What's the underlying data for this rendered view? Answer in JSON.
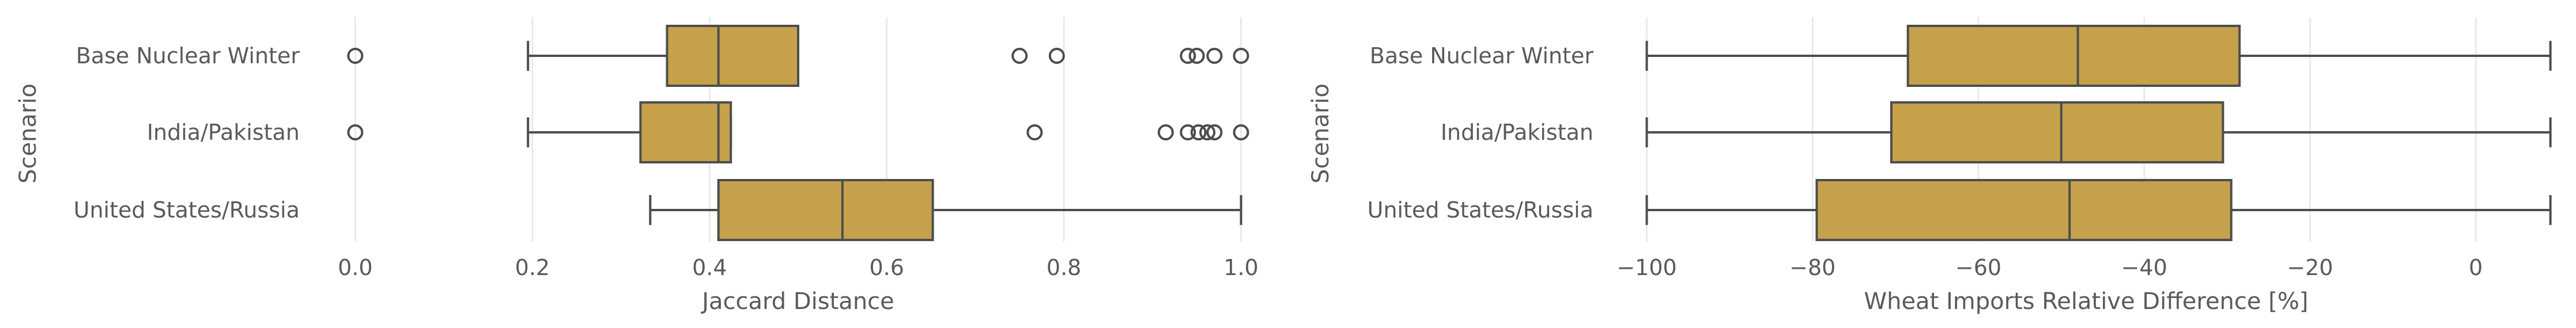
{
  "colors": {
    "box_fill": "#c5a14c",
    "line": "#4d4d4d",
    "grid": "#e6e6e6",
    "text": "#5a5a5a"
  },
  "chart_data": [
    {
      "type": "box",
      "ylabel": "Scenario",
      "xlabel": "Jaccard Distance",
      "categories": [
        "Base Nuclear Winter",
        "India/Pakistan",
        "United States/Russia"
      ],
      "xlim": [
        -0.04,
        1.04
      ],
      "xticks": [
        0.0,
        0.2,
        0.4,
        0.6,
        0.8,
        1.0
      ],
      "xtick_labels": [
        "0.0",
        "0.2",
        "0.4",
        "0.6",
        "0.8",
        "1.0"
      ],
      "grid": "x",
      "boxes": [
        {
          "category": "Base Nuclear Winter",
          "whislo": 0.195,
          "q1": 0.352,
          "med": 0.41,
          "q3": 0.5,
          "whishi": 0.5,
          "fliers": [
            0.0,
            0.75,
            0.792,
            0.94,
            0.95,
            0.97,
            1.0
          ]
        },
        {
          "category": "India/Pakistan",
          "whislo": 0.195,
          "q1": 0.322,
          "med": 0.41,
          "q3": 0.424,
          "whishi": 0.424,
          "fliers": [
            0.0,
            0.767,
            0.915,
            0.94,
            0.952,
            0.962,
            0.97,
            1.0
          ]
        },
        {
          "category": "United States/Russia",
          "whislo": 0.333,
          "q1": 0.41,
          "med": 0.55,
          "q3": 0.652,
          "whishi": 1.0,
          "fliers": []
        }
      ]
    },
    {
      "type": "box",
      "ylabel": "Scenario",
      "xlabel": "Wheat Imports Relative Difference [%]",
      "categories": [
        "Base Nuclear Winter",
        "India/Pakistan",
        "United States/Russia"
      ],
      "xlim": [
        -104,
        10
      ],
      "xticks": [
        -100,
        -80,
        -60,
        -40,
        -20,
        0
      ],
      "xtick_labels": [
        "−100",
        "−80",
        "−60",
        "−40",
        "−20",
        "0"
      ],
      "grid": "x",
      "boxes": [
        {
          "category": "Base Nuclear Winter",
          "whislo": -100,
          "q1": -68.5,
          "med": -48,
          "q3": -28.5,
          "whishi": 9,
          "fliers": []
        },
        {
          "category": "India/Pakistan",
          "whislo": -100,
          "q1": -70.5,
          "med": -50,
          "q3": -30.5,
          "whishi": 9,
          "fliers": []
        },
        {
          "category": "United States/Russia",
          "whislo": -100,
          "q1": -79.5,
          "med": -49,
          "q3": -29.5,
          "whishi": 9,
          "fliers": []
        }
      ]
    }
  ]
}
